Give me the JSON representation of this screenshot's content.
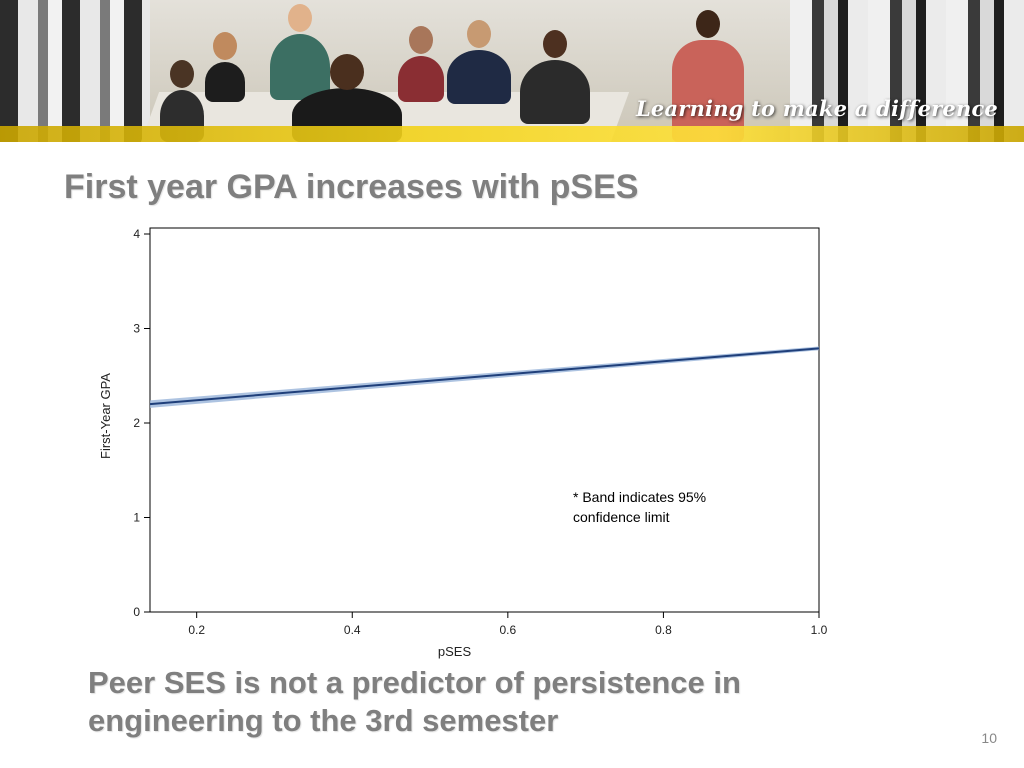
{
  "banner": {
    "tagline": "Learning to make a difference",
    "accent_color": "#f2d21a"
  },
  "slide": {
    "title": "First year GPA increases with pSES",
    "conclusion": "Peer SES is not a predictor of persistence in engineering to the 3rd semester",
    "page_number": "10"
  },
  "chart_data": {
    "type": "line",
    "title": "",
    "xlabel": "pSES",
    "ylabel": "First-Year GPA",
    "xlim": [
      0.14,
      1.0
    ],
    "ylim": [
      0,
      4
    ],
    "x_ticks": [
      "0.2",
      "0.4",
      "0.6",
      "0.8",
      "1.0"
    ],
    "y_ticks": [
      "0",
      "1",
      "2",
      "3",
      "4"
    ],
    "grid": false,
    "series": [
      {
        "x": [
          0.14,
          1.0
        ],
        "y": [
          2.2,
          2.79
        ],
        "lower": [
          2.16,
          2.77
        ],
        "upper": [
          2.24,
          2.81
        ],
        "color": "#1f3f7a",
        "band_color": "#9fb8dc"
      }
    ],
    "annotation": "* Band indicates 95% confidence limit"
  }
}
